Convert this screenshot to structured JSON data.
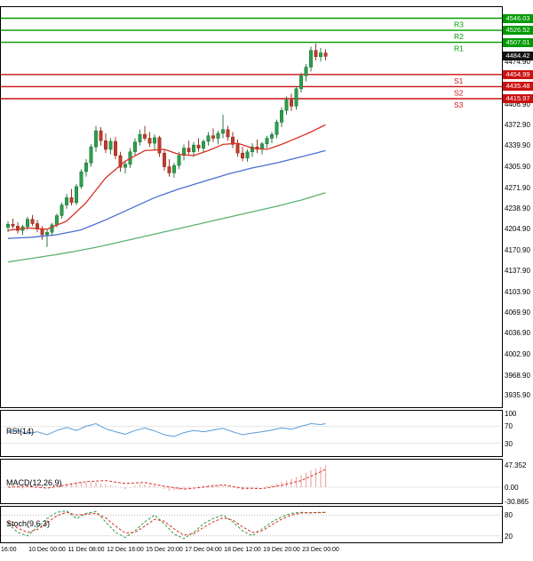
{
  "colors": {
    "up_candle": "#2e9e4f",
    "up_candle_stroke": "#17702f",
    "down_candle": "#c23b2e",
    "down_candle_stroke": "#8e2417",
    "resistance_line": "#009a00",
    "support_line": "#cc1111",
    "resistance_badge": "#009a00",
    "support_badge": "#cc1111",
    "price_badge": "#111111",
    "ma_fast": "#d93025",
    "ma_mid": "#4a6fd1",
    "ma_slow": "#5cb270",
    "rsi_line": "#5b9bd5",
    "macd_hist": "#f0b0b0",
    "macd_signal": "#d93025",
    "stoch_k": "#2f9e44",
    "stoch_d": "#d93025",
    "grid_dot": "#aaaaaa",
    "axis_text": "#000000"
  },
  "chart_data": {
    "type": "candlestick",
    "timeframe": "4h",
    "current_price": 4484.42,
    "pivot_levels": {
      "resistance": [
        {
          "label": "R3",
          "value": 4546.03
        },
        {
          "label": "R2",
          "value": 4526.52
        },
        {
          "label": "R1",
          "value": 4507.01
        }
      ],
      "support": [
        {
          "label": "S1",
          "value": 4454.99
        },
        {
          "label": "S2",
          "value": 4435.48
        },
        {
          "label": "S3",
          "value": 4415.97
        }
      ]
    },
    "y_ticks": [
      4474.9,
      4406.9,
      4372.9,
      4339.9,
      4305.9,
      4271.9,
      4238.9,
      4204.9,
      4170.9,
      4137.9,
      4103.9,
      4069.9,
      4036.9,
      4002.9,
      3968.9,
      3935.9
    ],
    "x_labels": [
      "16:00",
      "10 Dec 00:00",
      "11 Dec 08:00",
      "12 Dec 16:00",
      "15 Dec 20:00",
      "17 Dec 04:00",
      "18 Dec 12:00",
      "19 Dec 20:00",
      "23 Dec 00:00"
    ],
    "x_label_every": 8,
    "candles": [
      [
        4208,
        4218,
        4200,
        4213
      ],
      [
        4213,
        4222,
        4206,
        4210
      ],
      [
        4210,
        4216,
        4198,
        4203
      ],
      [
        4203,
        4212,
        4196,
        4209
      ],
      [
        4209,
        4225,
        4204,
        4221
      ],
      [
        4221,
        4228,
        4210,
        4214
      ],
      [
        4214,
        4220,
        4200,
        4205
      ],
      [
        4205,
        4210,
        4188,
        4196
      ],
      [
        4196,
        4205,
        4176,
        4200
      ],
      [
        4200,
        4215,
        4194,
        4212
      ],
      [
        4212,
        4230,
        4208,
        4227
      ],
      [
        4227,
        4248,
        4222,
        4244
      ],
      [
        4244,
        4262,
        4238,
        4256
      ],
      [
        4256,
        4270,
        4243,
        4248
      ],
      [
        4248,
        4278,
        4244,
        4274
      ],
      [
        4274,
        4302,
        4270,
        4298
      ],
      [
        4298,
        4318,
        4290,
        4312
      ],
      [
        4312,
        4342,
        4306,
        4338
      ],
      [
        4338,
        4372,
        4330,
        4364
      ],
      [
        4364,
        4370,
        4340,
        4348
      ],
      [
        4348,
        4360,
        4328,
        4334
      ],
      [
        4334,
        4352,
        4326,
        4347
      ],
      [
        4347,
        4354,
        4318,
        4324
      ],
      [
        4324,
        4330,
        4298,
        4305
      ],
      [
        4305,
        4316,
        4295,
        4310
      ],
      [
        4310,
        4336,
        4304,
        4330
      ],
      [
        4330,
        4352,
        4324,
        4346
      ],
      [
        4346,
        4366,
        4340,
        4358
      ],
      [
        4358,
        4372,
        4348,
        4352
      ],
      [
        4352,
        4362,
        4338,
        4344
      ],
      [
        4344,
        4358,
        4334,
        4353
      ],
      [
        4353,
        4356,
        4322,
        4328
      ],
      [
        4328,
        4334,
        4300,
        4306
      ],
      [
        4306,
        4318,
        4290,
        4296
      ],
      [
        4296,
        4312,
        4288,
        4308
      ],
      [
        4308,
        4330,
        4302,
        4324
      ],
      [
        4324,
        4342,
        4316,
        4336
      ],
      [
        4336,
        4348,
        4326,
        4330
      ],
      [
        4330,
        4346,
        4322,
        4341
      ],
      [
        4341,
        4352,
        4330,
        4336
      ],
      [
        4336,
        4350,
        4328,
        4347
      ],
      [
        4347,
        4362,
        4340,
        4356
      ],
      [
        4356,
        4368,
        4346,
        4352
      ],
      [
        4352,
        4364,
        4342,
        4360
      ],
      [
        4360,
        4390,
        4352,
        4366
      ],
      [
        4366,
        4372,
        4348,
        4354
      ],
      [
        4354,
        4362,
        4336,
        4342
      ],
      [
        4342,
        4350,
        4322,
        4328
      ],
      [
        4328,
        4338,
        4315,
        4320
      ],
      [
        4320,
        4334,
        4314,
        4330
      ],
      [
        4330,
        4344,
        4322,
        4338
      ],
      [
        4338,
        4350,
        4328,
        4334
      ],
      [
        4334,
        4346,
        4326,
        4343
      ],
      [
        4343,
        4356,
        4336,
        4352
      ],
      [
        4352,
        4362,
        4344,
        4358
      ],
      [
        4358,
        4382,
        4352,
        4378
      ],
      [
        4378,
        4402,
        4370,
        4397
      ],
      [
        4397,
        4420,
        4390,
        4414
      ],
      [
        4414,
        4424,
        4396,
        4404
      ],
      [
        4404,
        4436,
        4398,
        4432
      ],
      [
        4432,
        4458,
        4426,
        4453
      ],
      [
        4453,
        4472,
        4444,
        4467
      ],
      [
        4467,
        4500,
        4460,
        4494
      ],
      [
        4494,
        4505,
        4478,
        4484
      ],
      [
        4484,
        4498,
        4476,
        4490
      ],
      [
        4490,
        4496,
        4478,
        4484.42
      ]
    ],
    "moving_averages": [
      {
        "name": "slow",
        "color_key": "ma_slow",
        "points": [
          [
            0,
            4152
          ],
          [
            5,
            4158
          ],
          [
            10,
            4164
          ],
          [
            15,
            4171
          ],
          [
            20,
            4179
          ],
          [
            25,
            4188
          ],
          [
            30,
            4197
          ],
          [
            35,
            4206
          ],
          [
            40,
            4215
          ],
          [
            45,
            4224
          ],
          [
            50,
            4233
          ],
          [
            55,
            4242
          ],
          [
            60,
            4252
          ],
          [
            65,
            4264
          ]
        ]
      },
      {
        "name": "mid",
        "color_key": "ma_mid",
        "points": [
          [
            0,
            4190
          ],
          [
            5,
            4192
          ],
          [
            10,
            4196
          ],
          [
            15,
            4204
          ],
          [
            20,
            4220
          ],
          [
            25,
            4238
          ],
          [
            30,
            4256
          ],
          [
            35,
            4270
          ],
          [
            40,
            4282
          ],
          [
            45,
            4294
          ],
          [
            50,
            4304
          ],
          [
            55,
            4312
          ],
          [
            60,
            4322
          ],
          [
            65,
            4332
          ]
        ]
      },
      {
        "name": "fast",
        "color_key": "ma_fast",
        "points": [
          [
            0,
            4203
          ],
          [
            4,
            4207
          ],
          [
            8,
            4205
          ],
          [
            12,
            4218
          ],
          [
            16,
            4248
          ],
          [
            20,
            4288
          ],
          [
            24,
            4315
          ],
          [
            28,
            4332
          ],
          [
            32,
            4334
          ],
          [
            35,
            4326
          ],
          [
            38,
            4324
          ],
          [
            41,
            4332
          ],
          [
            44,
            4342
          ],
          [
            47,
            4344
          ],
          [
            50,
            4336
          ],
          [
            53,
            4334
          ],
          [
            56,
            4342
          ],
          [
            59,
            4352
          ],
          [
            62,
            4362
          ],
          [
            65,
            4374
          ]
        ]
      }
    ],
    "indicators": {
      "rsi": {
        "label": "RSI(14)",
        "axis_labels": [
          "100",
          "70",
          "30"
        ],
        "axis_values": [
          100,
          70,
          30
        ],
        "dotted_levels": [
          70,
          30
        ],
        "points": [
          [
            0,
            55
          ],
          [
            2,
            60
          ],
          [
            4,
            52
          ],
          [
            6,
            57
          ],
          [
            8,
            50
          ],
          [
            10,
            60
          ],
          [
            12,
            67
          ],
          [
            14,
            60
          ],
          [
            16,
            70
          ],
          [
            18,
            76
          ],
          [
            20,
            64
          ],
          [
            22,
            57
          ],
          [
            24,
            51
          ],
          [
            26,
            60
          ],
          [
            28,
            66
          ],
          [
            30,
            59
          ],
          [
            32,
            50
          ],
          [
            34,
            46
          ],
          [
            36,
            55
          ],
          [
            38,
            60
          ],
          [
            40,
            57
          ],
          [
            42,
            61
          ],
          [
            44,
            65
          ],
          [
            46,
            57
          ],
          [
            48,
            50
          ],
          [
            50,
            54
          ],
          [
            52,
            57
          ],
          [
            54,
            61
          ],
          [
            56,
            66
          ],
          [
            58,
            63
          ],
          [
            60,
            70
          ],
          [
            62,
            76
          ],
          [
            64,
            74
          ],
          [
            65,
            76
          ]
        ]
      },
      "macd": {
        "label": "MACD(12,26,9)",
        "axis_labels": [
          "47.352",
          "0.00",
          "-30.865"
        ],
        "axis_values": [
          47.352,
          0,
          -30.865
        ],
        "dotted_levels": [
          0
        ],
        "hist_points": [
          [
            0,
            2
          ],
          [
            3,
            -3
          ],
          [
            6,
            4
          ],
          [
            9,
            -2
          ],
          [
            12,
            8
          ],
          [
            15,
            12
          ],
          [
            18,
            10
          ],
          [
            21,
            4
          ],
          [
            24,
            -4
          ],
          [
            27,
            6
          ],
          [
            30,
            4
          ],
          [
            33,
            -8
          ],
          [
            36,
            -5
          ],
          [
            39,
            3
          ],
          [
            42,
            6
          ],
          [
            45,
            2
          ],
          [
            48,
            -6
          ],
          [
            51,
            -2
          ],
          [
            54,
            5
          ],
          [
            57,
            14
          ],
          [
            60,
            26
          ],
          [
            62,
            36
          ],
          [
            64,
            44
          ],
          [
            65,
            47
          ]
        ],
        "signal_points": [
          [
            0,
            0
          ],
          [
            4,
            2
          ],
          [
            8,
            -2
          ],
          [
            12,
            5
          ],
          [
            16,
            12
          ],
          [
            20,
            14
          ],
          [
            24,
            8
          ],
          [
            28,
            10
          ],
          [
            32,
            2
          ],
          [
            36,
            -4
          ],
          [
            40,
            0
          ],
          [
            44,
            5
          ],
          [
            48,
            -2
          ],
          [
            52,
            -3
          ],
          [
            56,
            4
          ],
          [
            60,
            14
          ],
          [
            63,
            28
          ],
          [
            65,
            38
          ]
        ]
      },
      "stoch": {
        "label": "Stoch(9,6,3)",
        "axis_labels": [
          "80",
          "20"
        ],
        "axis_values": [
          80,
          20
        ],
        "dotted_levels": [
          80,
          20
        ],
        "k_points": [
          [
            0,
            55
          ],
          [
            2,
            30
          ],
          [
            4,
            20
          ],
          [
            6,
            45
          ],
          [
            8,
            70
          ],
          [
            10,
            88
          ],
          [
            12,
            92
          ],
          [
            14,
            70
          ],
          [
            16,
            85
          ],
          [
            18,
            90
          ],
          [
            20,
            60
          ],
          [
            22,
            30
          ],
          [
            24,
            15
          ],
          [
            26,
            35
          ],
          [
            28,
            60
          ],
          [
            30,
            80
          ],
          [
            32,
            55
          ],
          [
            34,
            25
          ],
          [
            36,
            12
          ],
          [
            38,
            30
          ],
          [
            40,
            55
          ],
          [
            42,
            70
          ],
          [
            44,
            80
          ],
          [
            46,
            60
          ],
          [
            48,
            35
          ],
          [
            50,
            20
          ],
          [
            52,
            40
          ],
          [
            54,
            60
          ],
          [
            56,
            75
          ],
          [
            58,
            85
          ],
          [
            60,
            88
          ],
          [
            62,
            86
          ],
          [
            64,
            88
          ],
          [
            65,
            87
          ]
        ],
        "d_points": [
          [
            0,
            60
          ],
          [
            2,
            42
          ],
          [
            4,
            30
          ],
          [
            6,
            38
          ],
          [
            8,
            58
          ],
          [
            10,
            78
          ],
          [
            12,
            88
          ],
          [
            14,
            80
          ],
          [
            16,
            82
          ],
          [
            18,
            85
          ],
          [
            20,
            72
          ],
          [
            22,
            48
          ],
          [
            24,
            28
          ],
          [
            26,
            30
          ],
          [
            28,
            48
          ],
          [
            30,
            68
          ],
          [
            32,
            62
          ],
          [
            34,
            40
          ],
          [
            36,
            22
          ],
          [
            38,
            26
          ],
          [
            40,
            44
          ],
          [
            42,
            60
          ],
          [
            44,
            72
          ],
          [
            46,
            66
          ],
          [
            48,
            46
          ],
          [
            50,
            30
          ],
          [
            52,
            34
          ],
          [
            54,
            52
          ],
          [
            56,
            68
          ],
          [
            58,
            80
          ],
          [
            60,
            86
          ],
          [
            62,
            87
          ],
          [
            64,
            87
          ],
          [
            65,
            88
          ]
        ]
      }
    }
  }
}
